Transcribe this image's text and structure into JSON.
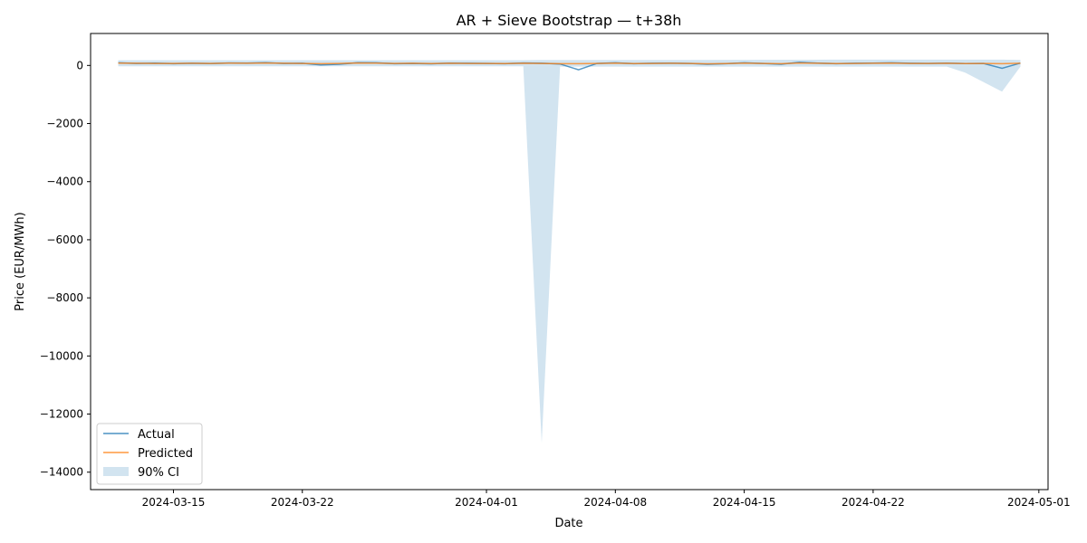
{
  "chart_data": {
    "type": "line",
    "title": "AR + Sieve Bootstrap — t+38h",
    "xlabel": "Date",
    "ylabel": "Price (EUR/MWh)",
    "x_range": [
      "2024-03-10T12:00",
      "2024-05-01T12:00"
    ],
    "ylim": [
      -14600,
      1100
    ],
    "x_ticks": [
      "2024-03-15",
      "2024-03-22",
      "2024-04-01",
      "2024-04-08",
      "2024-04-15",
      "2024-04-22",
      "2024-05-01"
    ],
    "y_ticks": [
      0,
      -2000,
      -4000,
      -6000,
      -8000,
      -10000,
      -12000,
      -14000
    ],
    "y_tick_labels": [
      "0",
      "−2000",
      "−4000",
      "−6000",
      "−8000",
      "−10000",
      "−12000",
      "−14000"
    ],
    "grid": false,
    "legend_position": "lower-left",
    "colors": {
      "actual": "#1f77b4",
      "predicted": "#ff7f0e",
      "ci": "#1f77b4"
    },
    "series": [
      {
        "name": "Actual",
        "x": [
          "2024-03-12",
          "2024-03-13",
          "2024-03-14",
          "2024-03-15",
          "2024-03-16",
          "2024-03-17",
          "2024-03-18",
          "2024-03-19",
          "2024-03-20",
          "2024-03-21",
          "2024-03-22",
          "2024-03-23",
          "2024-03-24",
          "2024-03-25",
          "2024-03-26",
          "2024-03-27",
          "2024-03-28",
          "2024-03-29",
          "2024-03-30",
          "2024-03-31",
          "2024-04-01",
          "2024-04-02",
          "2024-04-03",
          "2024-04-04",
          "2024-04-05",
          "2024-04-06",
          "2024-04-07",
          "2024-04-08",
          "2024-04-09",
          "2024-04-10",
          "2024-04-11",
          "2024-04-12",
          "2024-04-13",
          "2024-04-14",
          "2024-04-15",
          "2024-04-16",
          "2024-04-17",
          "2024-04-18",
          "2024-04-19",
          "2024-04-20",
          "2024-04-21",
          "2024-04-22",
          "2024-04-23",
          "2024-04-24",
          "2024-04-25",
          "2024-04-26",
          "2024-04-27",
          "2024-04-28",
          "2024-04-29",
          "2024-04-30"
        ],
        "y": [
          90,
          70,
          80,
          60,
          75,
          65,
          85,
          80,
          95,
          70,
          75,
          20,
          40,
          95,
          90,
          60,
          70,
          55,
          80,
          75,
          70,
          60,
          85,
          75,
          50,
          -150,
          70,
          90,
          60,
          75,
          80,
          70,
          40,
          60,
          90,
          70,
          40,
          110,
          80,
          60,
          75,
          80,
          90,
          75,
          70,
          80,
          65,
          70,
          -100,
          80
        ]
      },
      {
        "name": "Predicted",
        "x": [
          "2024-03-12",
          "2024-03-13",
          "2024-03-14",
          "2024-03-15",
          "2024-03-16",
          "2024-03-17",
          "2024-03-18",
          "2024-03-19",
          "2024-03-20",
          "2024-03-21",
          "2024-03-22",
          "2024-03-23",
          "2024-03-24",
          "2024-03-25",
          "2024-03-26",
          "2024-03-27",
          "2024-03-28",
          "2024-03-29",
          "2024-03-30",
          "2024-03-31",
          "2024-04-01",
          "2024-04-02",
          "2024-04-03",
          "2024-04-04",
          "2024-04-05",
          "2024-04-06",
          "2024-04-07",
          "2024-04-08",
          "2024-04-09",
          "2024-04-10",
          "2024-04-11",
          "2024-04-12",
          "2024-04-13",
          "2024-04-14",
          "2024-04-15",
          "2024-04-16",
          "2024-04-17",
          "2024-04-18",
          "2024-04-19",
          "2024-04-20",
          "2024-04-21",
          "2024-04-22",
          "2024-04-23",
          "2024-04-24",
          "2024-04-25",
          "2024-04-26",
          "2024-04-27",
          "2024-04-28",
          "2024-04-29",
          "2024-04-30"
        ],
        "y": [
          80,
          75,
          70,
          70,
          75,
          70,
          80,
          75,
          85,
          75,
          70,
          60,
          70,
          85,
          80,
          70,
          75,
          65,
          75,
          70,
          70,
          65,
          75,
          70,
          60,
          60,
          70,
          80,
          65,
          70,
          75,
          70,
          55,
          65,
          80,
          70,
          60,
          85,
          75,
          65,
          70,
          75,
          80,
          70,
          70,
          75,
          65,
          70,
          60,
          75
        ]
      },
      {
        "name": "90% CI",
        "x": [
          "2024-03-12",
          "2024-03-20",
          "2024-03-28",
          "2024-04-03",
          "2024-04-04",
          "2024-04-05",
          "2024-04-12",
          "2024-04-20",
          "2024-04-26",
          "2024-04-27",
          "2024-04-29",
          "2024-04-30"
        ],
        "lower": [
          -30,
          -30,
          -30,
          -30,
          -13000,
          -40,
          -40,
          -40,
          -40,
          -250,
          -900,
          -40
        ],
        "upper": [
          180,
          180,
          180,
          180,
          190,
          190,
          190,
          200,
          200,
          200,
          200,
          190
        ]
      }
    ]
  }
}
